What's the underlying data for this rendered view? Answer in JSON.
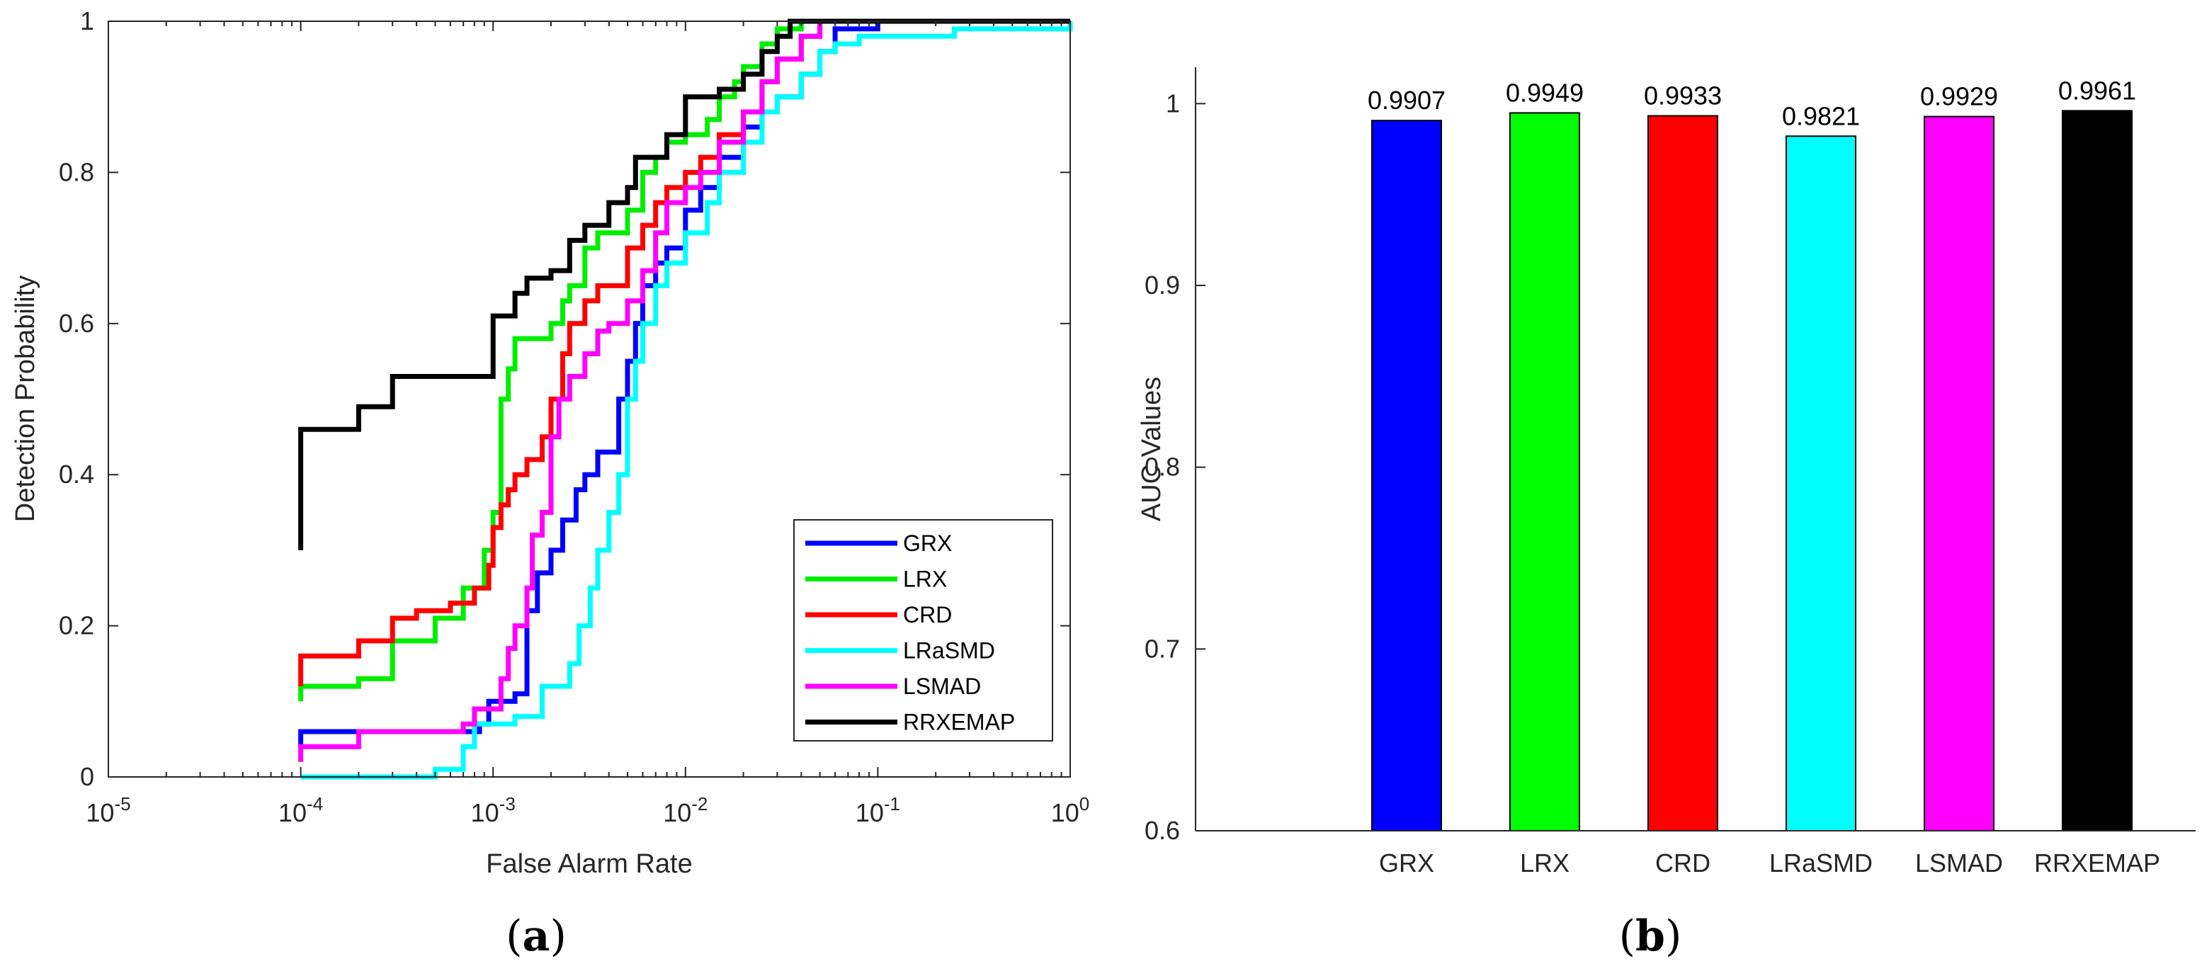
{
  "chart_data": [
    {
      "type": "line",
      "xlabel": "False Alarm Rate",
      "ylabel": "Detection Probability",
      "xscale": "log",
      "xlim": [
        1e-05,
        1
      ],
      "ylim": [
        0,
        1
      ],
      "x_ticks": [
        {
          "base": "10",
          "exp": "-5"
        },
        {
          "base": "10",
          "exp": "-4"
        },
        {
          "base": "10",
          "exp": "-3"
        },
        {
          "base": "10",
          "exp": "-2"
        },
        {
          "base": "10",
          "exp": "-1"
        },
        {
          "base": "10",
          "exp": "0"
        }
      ],
      "y_ticks": [
        "0",
        "0.2",
        "0.4",
        "0.6",
        "0.8",
        "1"
      ],
      "legend_position": "bottom-right",
      "panel_label": "(a)",
      "series": [
        {
          "name": "GRX",
          "color": "#0000ff",
          "points": [
            [
              0.0001,
              0.04
            ],
            [
              0.0001,
              0.06
            ],
            [
              0.00055,
              0.06
            ],
            [
              0.00085,
              0.07
            ],
            [
              0.00095,
              0.1
            ],
            [
              0.0013,
              0.11
            ],
            [
              0.0015,
              0.22
            ],
            [
              0.0017,
              0.27
            ],
            [
              0.002,
              0.3
            ],
            [
              0.0023,
              0.34
            ],
            [
              0.0027,
              0.38
            ],
            [
              0.003,
              0.4
            ],
            [
              0.0035,
              0.43
            ],
            [
              0.004,
              0.43
            ],
            [
              0.0045,
              0.5
            ],
            [
              0.005,
              0.55
            ],
            [
              0.0055,
              0.6
            ],
            [
              0.006,
              0.65
            ],
            [
              0.007,
              0.68
            ],
            [
              0.008,
              0.7
            ],
            [
              0.01,
              0.75
            ],
            [
              0.012,
              0.78
            ],
            [
              0.015,
              0.82
            ],
            [
              0.02,
              0.86
            ],
            [
              0.025,
              0.88
            ],
            [
              0.03,
              0.9
            ],
            [
              0.04,
              0.93
            ],
            [
              0.05,
              0.96
            ],
            [
              0.06,
              0.99
            ],
            [
              0.1,
              1
            ],
            [
              1,
              1
            ]
          ]
        },
        {
          "name": "LRX",
          "color": "#00ee00",
          "points": [
            [
              0.0001,
              0.1
            ],
            [
              0.0001,
              0.12
            ],
            [
              0.0002,
              0.13
            ],
            [
              0.0003,
              0.18
            ],
            [
              0.0005,
              0.21
            ],
            [
              0.0007,
              0.25
            ],
            [
              0.0009,
              0.3
            ],
            [
              0.001,
              0.35
            ],
            [
              0.0011,
              0.5
            ],
            [
              0.0012,
              0.54
            ],
            [
              0.0013,
              0.58
            ],
            [
              0.002,
              0.6
            ],
            [
              0.0023,
              0.63
            ],
            [
              0.0025,
              0.65
            ],
            [
              0.003,
              0.7
            ],
            [
              0.0035,
              0.72
            ],
            [
              0.004,
              0.72
            ],
            [
              0.005,
              0.75
            ],
            [
              0.006,
              0.8
            ],
            [
              0.007,
              0.82
            ],
            [
              0.008,
              0.84
            ],
            [
              0.01,
              0.85
            ],
            [
              0.013,
              0.87
            ],
            [
              0.015,
              0.9
            ],
            [
              0.018,
              0.92
            ],
            [
              0.02,
              0.94
            ],
            [
              0.025,
              0.97
            ],
            [
              0.03,
              0.99
            ],
            [
              0.04,
              1
            ],
            [
              1,
              1
            ]
          ]
        },
        {
          "name": "CRD",
          "color": "#ff0000",
          "points": [
            [
              0.0001,
              0.12
            ],
            [
              0.0001,
              0.16
            ],
            [
              0.0002,
              0.18
            ],
            [
              0.0003,
              0.21
            ],
            [
              0.0004,
              0.22
            ],
            [
              0.0006,
              0.23
            ],
            [
              0.0008,
              0.25
            ],
            [
              0.00095,
              0.28
            ],
            [
              0.001,
              0.33
            ],
            [
              0.0011,
              0.36
            ],
            [
              0.0012,
              0.38
            ],
            [
              0.0013,
              0.4
            ],
            [
              0.0015,
              0.42
            ],
            [
              0.0018,
              0.45
            ],
            [
              0.002,
              0.5
            ],
            [
              0.0023,
              0.56
            ],
            [
              0.0025,
              0.6
            ],
            [
              0.003,
              0.63
            ],
            [
              0.0035,
              0.65
            ],
            [
              0.004,
              0.65
            ],
            [
              0.005,
              0.7
            ],
            [
              0.006,
              0.73
            ],
            [
              0.007,
              0.76
            ],
            [
              0.008,
              0.78
            ],
            [
              0.01,
              0.8
            ],
            [
              0.012,
              0.82
            ],
            [
              0.015,
              0.85
            ],
            [
              0.02,
              0.88
            ],
            [
              0.025,
              0.92
            ],
            [
              0.03,
              0.95
            ],
            [
              0.04,
              0.98
            ],
            [
              0.05,
              1
            ],
            [
              1,
              1
            ]
          ]
        },
        {
          "name": "LRaSMD",
          "color": "#00ffff",
          "points": [
            [
              0.0001,
              0
            ],
            [
              0.0005,
              0.01
            ],
            [
              0.0007,
              0.04
            ],
            [
              0.0008,
              0.07
            ],
            [
              0.0013,
              0.08
            ],
            [
              0.0018,
              0.12
            ],
            [
              0.0025,
              0.15
            ],
            [
              0.0028,
              0.2
            ],
            [
              0.0032,
              0.25
            ],
            [
              0.0035,
              0.3
            ],
            [
              0.004,
              0.35
            ],
            [
              0.0045,
              0.4
            ],
            [
              0.005,
              0.5
            ],
            [
              0.0055,
              0.55
            ],
            [
              0.006,
              0.6
            ],
            [
              0.007,
              0.65
            ],
            [
              0.008,
              0.68
            ],
            [
              0.01,
              0.72
            ],
            [
              0.013,
              0.76
            ],
            [
              0.015,
              0.8
            ],
            [
              0.02,
              0.84
            ],
            [
              0.025,
              0.88
            ],
            [
              0.03,
              0.9
            ],
            [
              0.04,
              0.93
            ],
            [
              0.05,
              0.96
            ],
            [
              0.06,
              0.97
            ],
            [
              0.08,
              0.98
            ],
            [
              0.15,
              0.98
            ],
            [
              0.25,
              0.99
            ],
            [
              1,
              1
            ]
          ]
        },
        {
          "name": "LSMAD",
          "color": "#ff00ff",
          "points": [
            [
              0.0001,
              0.02
            ],
            [
              0.0001,
              0.04
            ],
            [
              0.0002,
              0.06
            ],
            [
              0.0005,
              0.06
            ],
            [
              0.0007,
              0.07
            ],
            [
              0.0008,
              0.09
            ],
            [
              0.0011,
              0.13
            ],
            [
              0.0012,
              0.17
            ],
            [
              0.0013,
              0.2
            ],
            [
              0.0015,
              0.25
            ],
            [
              0.0016,
              0.32
            ],
            [
              0.0018,
              0.35
            ],
            [
              0.002,
              0.45
            ],
            [
              0.0022,
              0.5
            ],
            [
              0.0025,
              0.53
            ],
            [
              0.003,
              0.56
            ],
            [
              0.0035,
              0.59
            ],
            [
              0.004,
              0.6
            ],
            [
              0.005,
              0.63
            ],
            [
              0.006,
              0.67
            ],
            [
              0.007,
              0.72
            ],
            [
              0.008,
              0.76
            ],
            [
              0.01,
              0.78
            ],
            [
              0.012,
              0.8
            ],
            [
              0.015,
              0.84
            ],
            [
              0.02,
              0.88
            ],
            [
              0.025,
              0.92
            ],
            [
              0.03,
              0.95
            ],
            [
              0.04,
              0.98
            ],
            [
              0.05,
              1
            ],
            [
              1,
              1
            ]
          ]
        },
        {
          "name": "RRXEMAP",
          "color": "#000000",
          "points": [
            [
              0.0001,
              0.3
            ],
            [
              0.0001,
              0.46
            ],
            [
              0.0002,
              0.49
            ],
            [
              0.0003,
              0.53
            ],
            [
              0.001,
              0.61
            ],
            [
              0.0013,
              0.64
            ],
            [
              0.0015,
              0.66
            ],
            [
              0.002,
              0.67
            ],
            [
              0.0025,
              0.71
            ],
            [
              0.003,
              0.73
            ],
            [
              0.004,
              0.76
            ],
            [
              0.005,
              0.78
            ],
            [
              0.0055,
              0.82
            ],
            [
              0.007,
              0.82
            ],
            [
              0.008,
              0.85
            ],
            [
              0.01,
              0.9
            ],
            [
              0.015,
              0.91
            ],
            [
              0.02,
              0.93
            ],
            [
              0.025,
              0.96
            ],
            [
              0.03,
              0.98
            ],
            [
              0.035,
              1
            ],
            [
              1,
              1
            ]
          ]
        }
      ]
    },
    {
      "type": "bar",
      "ylabel": "AUC Values",
      "ylim": [
        0.6,
        1.02
      ],
      "y_ticks": [
        "0.6",
        "0.7",
        "0.8",
        "0.9",
        "1"
      ],
      "categories": [
        "GRX",
        "LRX",
        "CRD",
        "LRaSMD",
        "LSMAD",
        "RRXEMAP"
      ],
      "values": [
        0.9907,
        0.9949,
        0.9933,
        0.9821,
        0.9929,
        0.9961
      ],
      "value_labels": [
        "0.9907",
        "0.9949",
        "0.9933",
        "0.9821",
        "0.9929",
        "0.9961"
      ],
      "colors": [
        "#0000ff",
        "#00ff00",
        "#ff0000",
        "#00ffff",
        "#ff00ff",
        "#000000"
      ],
      "panel_label": "(b)"
    }
  ]
}
